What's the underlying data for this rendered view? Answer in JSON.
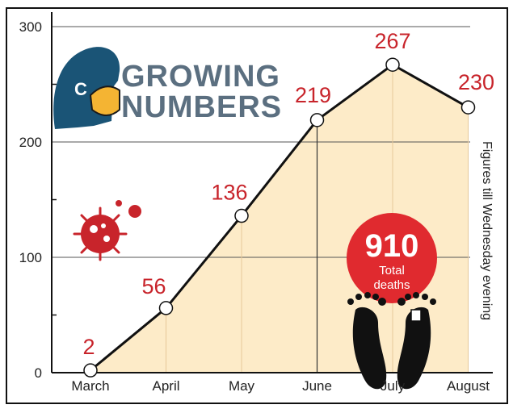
{
  "title_line1": "GROWING",
  "title_line2": "NUMBERS",
  "side_note": "Figures till Wednesday evening",
  "badge": {
    "number": "910",
    "line1": "Total",
    "line2": "deaths"
  },
  "icons": {
    "logo": "c-head-mask-icon",
    "virus": "virus-icon",
    "feet": "feet-tag-icon"
  },
  "colors": {
    "line": "#111111",
    "area": "#fdebc8",
    "accent": "#c8242b",
    "title": "#5b6f80",
    "logo": "#1a5476"
  },
  "chart_data": {
    "type": "area",
    "categories": [
      "March",
      "April",
      "May",
      "June",
      "July",
      "August"
    ],
    "values": [
      2,
      56,
      136,
      219,
      267,
      230
    ],
    "data_labels": [
      "2",
      "56",
      "136",
      "219",
      "267",
      "230"
    ],
    "yticks": [
      0,
      100,
      200,
      300
    ],
    "ylim": [
      0,
      300
    ],
    "title": "GROWING NUMBERS",
    "xlabel": "",
    "ylabel": "",
    "grid": true
  }
}
